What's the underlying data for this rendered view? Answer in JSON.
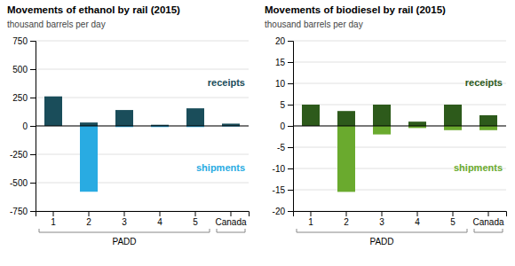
{
  "chart_data": [
    {
      "type": "bar",
      "title": "Movements of ethanol by rail (2015)",
      "subtitle": "thousand barrels per day",
      "xlabel": "PADD",
      "categories": [
        "1",
        "2",
        "3",
        "4",
        "5",
        "Canada"
      ],
      "series": [
        {
          "name": "receipts",
          "color": "#1a4d5a",
          "values": [
            260,
            30,
            140,
            10,
            155,
            20
          ]
        },
        {
          "name": "shipments",
          "color": "#29abe2",
          "values": [
            0,
            -580,
            -10,
            -10,
            -10,
            -5
          ]
        }
      ],
      "stacked": true,
      "ylim": [
        -750,
        750
      ],
      "yticks": [
        -750,
        -500,
        -250,
        0,
        250,
        500,
        750
      ],
      "grid": true,
      "legend": "right"
    },
    {
      "type": "bar",
      "title": "Movements of biodiesel by rail (2015)",
      "subtitle": "thousand barrels per day",
      "xlabel": "PADD",
      "categories": [
        "1",
        "2",
        "3",
        "4",
        "5",
        "Canada"
      ],
      "series": [
        {
          "name": "receipts",
          "color": "#2d5a1b",
          "values": [
            5,
            3.5,
            5,
            1,
            5,
            2.5
          ]
        },
        {
          "name": "shipments",
          "color": "#6aaa2e",
          "values": [
            0,
            -15.5,
            -2,
            -0.5,
            -1,
            -1
          ]
        }
      ],
      "stacked": true,
      "ylim": [
        -20,
        20
      ],
      "yticks": [
        -20,
        -15,
        -10,
        -5,
        0,
        5,
        10,
        15,
        20
      ],
      "grid": true,
      "legend": "right"
    }
  ]
}
